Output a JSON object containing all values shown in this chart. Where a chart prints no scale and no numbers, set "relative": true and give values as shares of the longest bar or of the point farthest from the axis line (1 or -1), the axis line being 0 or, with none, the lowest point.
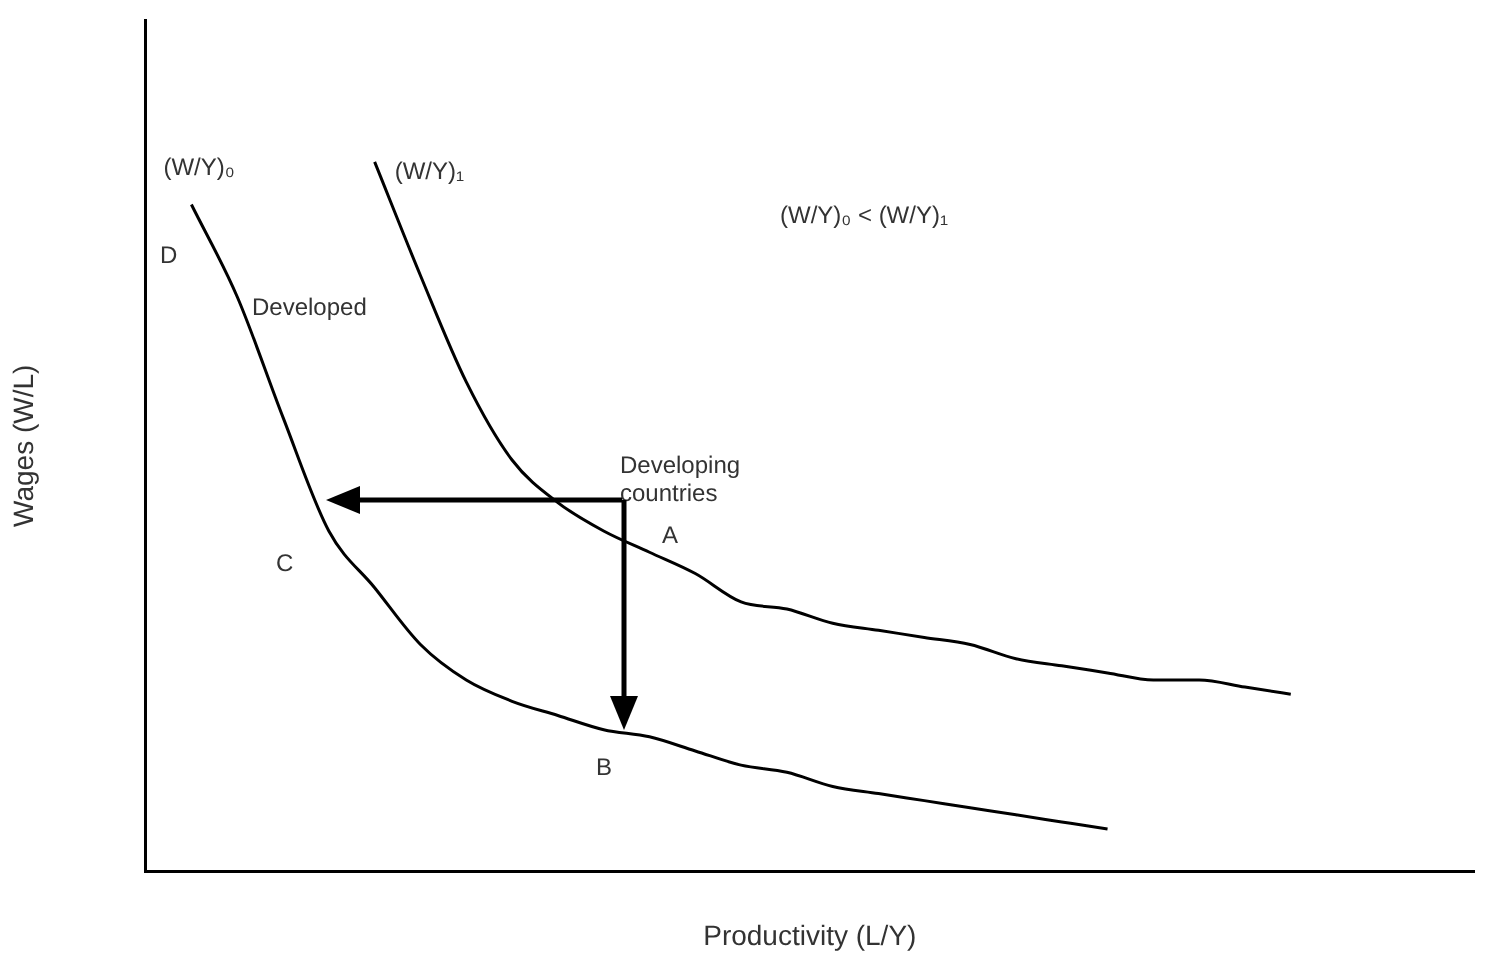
{
  "chart_data": {
    "type": "line",
    "relative": true,
    "xlabel": "Productivity (L/Y)",
    "ylabel": "Wages (W/L)",
    "legend": false,
    "marker": "none",
    "categories": [
      null,
      null,
      null,
      null,
      null,
      null,
      null,
      null,
      null,
      null,
      null,
      null,
      null,
      null,
      null,
      null,
      null,
      null,
      null,
      null,
      null,
      null,
      null,
      null,
      null,
      null,
      null,
      null,
      null,
      null
    ],
    "series": [
      {
        "name": "(W/Y)₀",
        "color": "#000000",
        "values": [
          null,
          0.94,
          0.81,
          0.64,
          0.48,
          0.4,
          0.32,
          0.27,
          0.24,
          0.22,
          0.2,
          0.19,
          0.17,
          0.15,
          0.14,
          0.12,
          0.11,
          0.1,
          0.09,
          0.08,
          0.07,
          0.06,
          null,
          null,
          null,
          null,
          null,
          null,
          null,
          null
        ]
      },
      {
        "name": "(W/Y)₁",
        "color": "#000000",
        "values": [
          null,
          null,
          null,
          null,
          null,
          1,
          0.84,
          0.69,
          0.58,
          0.52,
          0.48,
          0.45,
          0.42,
          0.38,
          0.37,
          0.35,
          0.34,
          0.33,
          0.32,
          0.3,
          0.29,
          0.28,
          0.27,
          0.27,
          0.26,
          0.25,
          null,
          null,
          null,
          null
        ]
      }
    ],
    "annotations": [
      "(W/Y)₀ < (W/Y)₁",
      "D",
      "Developed",
      "Developing countries",
      "A",
      "B",
      "C"
    ]
  }
}
